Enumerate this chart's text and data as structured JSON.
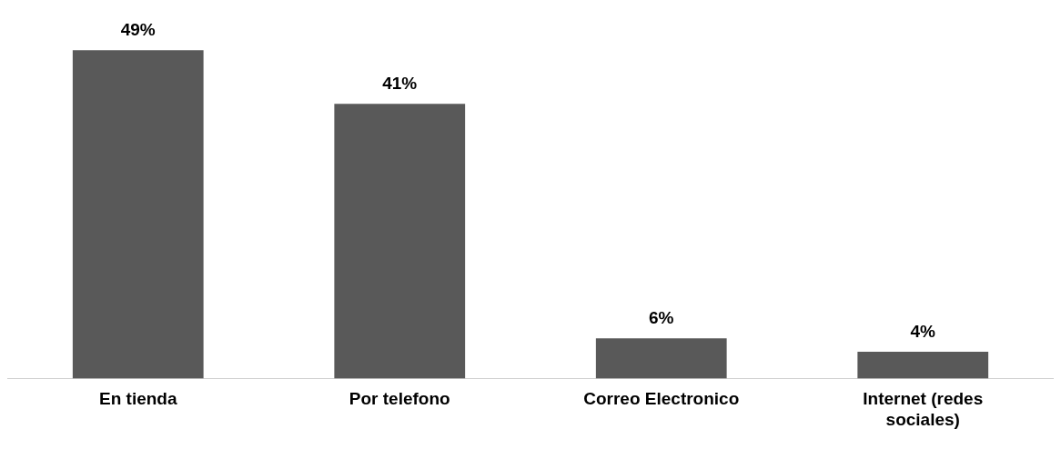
{
  "chart_data": {
    "type": "bar",
    "categories": [
      "En tienda",
      "Por telefono",
      "Correo Electronico",
      "Internet (redes sociales)"
    ],
    "values": [
      49,
      41,
      6,
      4
    ],
    "value_labels": [
      "49%",
      "41%",
      "6%",
      "4%"
    ],
    "color": "#595959",
    "grid": false
  }
}
